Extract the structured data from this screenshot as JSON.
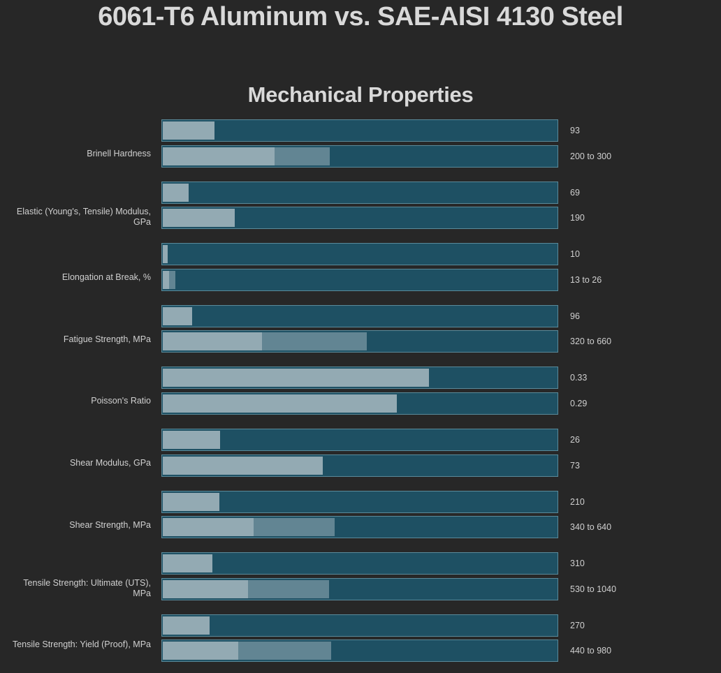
{
  "page_title": "6061-T6 Aluminum vs. SAE-AISI 4130 Steel",
  "section_title": "Mechanical Properties",
  "colors": {
    "background": "#272727",
    "bar_track": "#1e5063",
    "bar_border": "#5a8a9a",
    "bar_value": "#93aab3",
    "bar_range": "#628593",
    "text": "#d0d0d0"
  },
  "chart_data": {
    "type": "bar",
    "orientation": "horizontal",
    "title": "Mechanical Properties",
    "series_names": [
      "6061-T6 Aluminum",
      "SAE-AISI 4130 Steel"
    ],
    "note": "Bars are fractions of a per-property scale; ranged values show low (light) and high (mid-tone) extent",
    "properties": [
      {
        "label": "Brinell Hardness",
        "rows": [
          {
            "text": "93",
            "low": 0.131,
            "high": 0.131
          },
          {
            "text": "200 to 300",
            "low": 0.283,
            "high": 0.424
          }
        ]
      },
      {
        "label": "Elastic (Young's, Tensile) Modulus, GPa",
        "rows": [
          {
            "text": "69",
            "low": 0.065,
            "high": 0.065
          },
          {
            "text": "190",
            "low": 0.182,
            "high": 0.182
          }
        ]
      },
      {
        "label": "Elongation at Break, %",
        "rows": [
          {
            "text": "10",
            "low": 0.012,
            "high": 0.012
          },
          {
            "text": "13 to 26",
            "low": 0.016,
            "high": 0.032
          }
        ]
      },
      {
        "label": "Fatigue Strength, MPa",
        "rows": [
          {
            "text": "96",
            "low": 0.074,
            "high": 0.074
          },
          {
            "text": "320 to 660",
            "low": 0.251,
            "high": 0.518
          }
        ]
      },
      {
        "label": "Poisson's Ratio",
        "rows": [
          {
            "text": "0.33",
            "low": 0.675,
            "high": 0.675
          },
          {
            "text": "0.29",
            "low": 0.594,
            "high": 0.594
          }
        ]
      },
      {
        "label": "Shear Modulus, GPa",
        "rows": [
          {
            "text": "26",
            "low": 0.145,
            "high": 0.145
          },
          {
            "text": "73",
            "low": 0.406,
            "high": 0.406
          }
        ]
      },
      {
        "label": "Shear Strength, MPa",
        "rows": [
          {
            "text": "210",
            "low": 0.143,
            "high": 0.143
          },
          {
            "text": "340 to 640",
            "low": 0.231,
            "high": 0.436
          }
        ]
      },
      {
        "label": "Tensile Strength: Ultimate (UTS), MPa",
        "rows": [
          {
            "text": "310",
            "low": 0.125,
            "high": 0.125
          },
          {
            "text": "530 to 1040",
            "low": 0.216,
            "high": 0.422
          }
        ]
      },
      {
        "label": "Tensile Strength: Yield (Proof), MPa",
        "rows": [
          {
            "text": "270",
            "low": 0.118,
            "high": 0.118
          },
          {
            "text": "440 to 980",
            "low": 0.191,
            "high": 0.428
          }
        ]
      }
    ]
  }
}
